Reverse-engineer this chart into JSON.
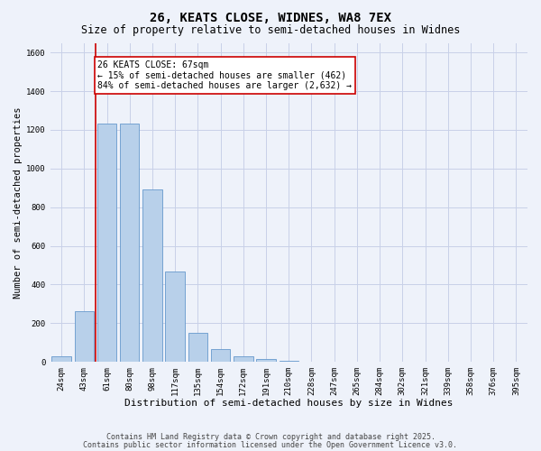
{
  "title1": "26, KEATS CLOSE, WIDNES, WA8 7EX",
  "title2": "Size of property relative to semi-detached houses in Widnes",
  "xlabel": "Distribution of semi-detached houses by size in Widnes",
  "ylabel": "Number of semi-detached properties",
  "footnote1": "Contains HM Land Registry data © Crown copyright and database right 2025.",
  "footnote2": "Contains public sector information licensed under the Open Government Licence v3.0.",
  "bar_labels": [
    "24sqm",
    "43sqm",
    "61sqm",
    "80sqm",
    "98sqm",
    "117sqm",
    "135sqm",
    "154sqm",
    "172sqm",
    "191sqm",
    "210sqm",
    "228sqm",
    "247sqm",
    "265sqm",
    "284sqm",
    "302sqm",
    "321sqm",
    "339sqm",
    "358sqm",
    "376sqm",
    "395sqm"
  ],
  "bar_values": [
    30,
    262,
    1232,
    1232,
    890,
    468,
    152,
    68,
    28,
    15,
    4,
    0,
    0,
    0,
    0,
    0,
    0,
    0,
    0,
    0,
    0
  ],
  "bar_color": "#b8d0ea",
  "bar_edge_color": "#6699cc",
  "vline_color": "#cc0000",
  "ylim": [
    0,
    1650
  ],
  "annotation_text": "26 KEATS CLOSE: 67sqm\n← 15% of semi-detached houses are smaller (462)\n84% of semi-detached houses are larger (2,632) →",
  "annotation_box_color": "#ffffff",
  "annotation_box_edge": "#cc0000",
  "background_color": "#eef2fa",
  "grid_color": "#c8d0e8",
  "title1_fontsize": 10,
  "title2_fontsize": 8.5,
  "xlabel_fontsize": 8,
  "ylabel_fontsize": 7.5,
  "tick_fontsize": 6.5,
  "annot_fontsize": 7,
  "footnote_fontsize": 6
}
